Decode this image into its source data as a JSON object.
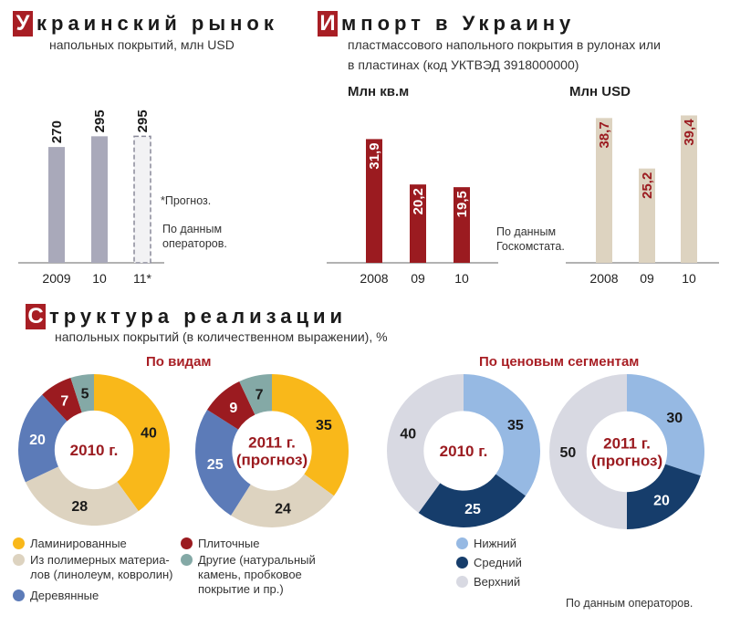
{
  "section1": {
    "cap": "У",
    "title_rest": "краинский рынок",
    "subtitle": "напольных покрытий, млн USD",
    "note_forecast": "*Прогноз.",
    "note_source": "По данным\nоператоров."
  },
  "section2": {
    "cap": "И",
    "title_rest": "мпорт в Украину",
    "subtitle_line1": "пластмассового напольного покрытия в рулонах или",
    "subtitle_line2": "в пластинах (код УКТВЭД 3918000000)",
    "header_left": "Млн кв.м",
    "header_right": "Млн USD",
    "note_source": "По данным\nГоскомстата."
  },
  "section3": {
    "cap": "С",
    "title_rest": "труктура реализации",
    "subtitle": "напольных покрытий (в количественном выражении), %",
    "header_types": "По видам",
    "header_price": "По ценовым сегментам",
    "legend_types": [
      {
        "label": "Ламинированные",
        "color": "#f9b81a"
      },
      {
        "label": "Из полимерных материа-\nлов (линолеум, ковролин)",
        "color": "#ddd3c0"
      },
      {
        "label": "Деревянные",
        "color": "#5c7bb8"
      },
      {
        "label": "Плиточные",
        "color": "#9b1b20"
      },
      {
        "label": "Другие (натуральный\nкамень, пробковое\nпокрытие и пр.)",
        "color": "#84a9a6"
      }
    ],
    "legend_price": [
      {
        "label": "Нижний",
        "color": "#96b9e3"
      },
      {
        "label": "Средний",
        "color": "#163d6b"
      },
      {
        "label": "Верхний",
        "color": "#d8d9e2"
      }
    ],
    "note_source": "По данным операторов."
  },
  "chart_data": [
    {
      "type": "bar",
      "title": "Украинский рынок напольных покрытий, млн USD",
      "categories": [
        "2009",
        "10",
        "11*"
      ],
      "values": [
        270,
        295,
        295
      ],
      "labels": [
        "270",
        "295",
        "295"
      ],
      "colors": [
        "#a9a9ba",
        "#a9a9ba",
        "#f2f2f4"
      ],
      "forecast_index": 2
    },
    {
      "type": "bar",
      "title": "Млн кв.м",
      "categories": [
        "2008",
        "09",
        "10"
      ],
      "values": [
        31.9,
        20.2,
        19.5
      ],
      "labels": [
        "31,9",
        "20,2",
        "19,5"
      ],
      "color": "#9b1b20"
    },
    {
      "type": "bar",
      "title": "Млн USD",
      "categories": [
        "2008",
        "09",
        "10"
      ],
      "values": [
        38.7,
        25.2,
        39.4
      ],
      "labels": [
        "38,7",
        "25,2",
        "39,4"
      ],
      "color": "#ddd3c0"
    },
    {
      "type": "pie",
      "center_label": "2010 г.",
      "values": [
        40,
        28,
        20,
        7,
        5
      ],
      "series": [
        "Ламинированные",
        "Из полимерных материалов",
        "Деревянные",
        "Плиточные",
        "Другие"
      ],
      "colors": [
        "#f9b81a",
        "#ddd3c0",
        "#5c7bb8",
        "#9b1b20",
        "#84a9a6"
      ],
      "label_colors": [
        "#1a1a1a",
        "#1a1a1a",
        "#ffffff",
        "#ffffff",
        "#1a1a1a"
      ]
    },
    {
      "type": "pie",
      "center_label": "2011 г.\n(прогноз)",
      "values": [
        35,
        24,
        25,
        9,
        7
      ],
      "series": [
        "Ламинированные",
        "Из полимерных материалов",
        "Деревянные",
        "Плиточные",
        "Другие"
      ],
      "colors": [
        "#f9b81a",
        "#ddd3c0",
        "#5c7bb8",
        "#9b1b20",
        "#84a9a6"
      ],
      "label_colors": [
        "#1a1a1a",
        "#1a1a1a",
        "#ffffff",
        "#ffffff",
        "#1a1a1a"
      ]
    },
    {
      "type": "pie",
      "center_label": "2010 г.",
      "values": [
        35,
        25,
        40
      ],
      "series": [
        "Нижний",
        "Средний",
        "Верхний"
      ],
      "colors": [
        "#96b9e3",
        "#163d6b",
        "#d8d9e2"
      ],
      "label_colors": [
        "#1a1a1a",
        "#ffffff",
        "#1a1a1a"
      ]
    },
    {
      "type": "pie",
      "center_label": "2011 г.\n(прогноз)",
      "values": [
        30,
        20,
        50
      ],
      "series": [
        "Нижний",
        "Средний",
        "Верхний"
      ],
      "colors": [
        "#96b9e3",
        "#163d6b",
        "#d8d9e2"
      ],
      "label_colors": [
        "#1a1a1a",
        "#ffffff",
        "#1a1a1a"
      ]
    }
  ]
}
